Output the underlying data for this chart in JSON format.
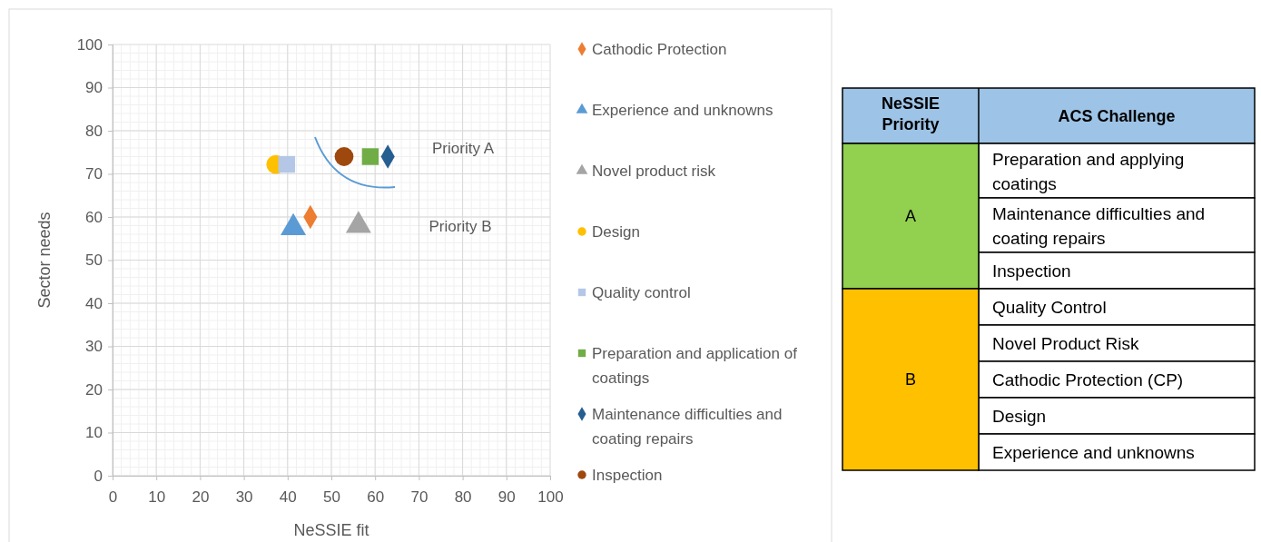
{
  "chart_data": [
    {
      "type": "scatter",
      "xlabel": "NeSSIE fit",
      "ylabel": "Sector needs",
      "xlim": [
        0,
        100
      ],
      "ylim": [
        0,
        100
      ],
      "xticks": [
        0,
        10,
        20,
        30,
        40,
        50,
        60,
        70,
        80,
        90,
        100
      ],
      "yticks": [
        0,
        10,
        20,
        30,
        40,
        50,
        60,
        70,
        80,
        90,
        100
      ],
      "grid": true,
      "legend": "right",
      "series": [
        {
          "name": "Cathodic Protection",
          "color": "#ed7d31",
          "marker": "diamond",
          "x": [
            45.2
          ],
          "values": [
            60
          ]
        },
        {
          "name": "Experience and unknowns",
          "color": "#5b9bd5",
          "marker": "triangle",
          "x": [
            41.3
          ],
          "values": [
            57.5
          ]
        },
        {
          "name": "Novel product risk",
          "color": "#a5a5a5",
          "marker": "triangle",
          "x": [
            56.2
          ],
          "values": [
            58
          ]
        },
        {
          "name": "Design",
          "color": "#ffc000",
          "marker": "circle",
          "x": [
            37.3
          ],
          "values": [
            72.2
          ]
        },
        {
          "name": "Quality control",
          "color": "#b4c7e7",
          "marker": "square",
          "x": [
            39.8
          ],
          "values": [
            72.2
          ]
        },
        {
          "name": "Preparation and application of coatings",
          "color": "#70ad47",
          "marker": "square",
          "x": [
            58.9
          ],
          "values": [
            74
          ]
        },
        {
          "name": "Maintenance difficulties and coating repairs",
          "color": "#255e91",
          "marker": "diamond",
          "x": [
            62.9
          ],
          "values": [
            74
          ]
        },
        {
          "name": "Inspection",
          "color": "#9e480e",
          "marker": "circle",
          "x": [
            52.9
          ],
          "values": [
            74
          ]
        }
      ],
      "annotations": [
        "Priority A",
        "Priority B"
      ]
    },
    {
      "type": "other",
      "categories": [
        "NeSSIE Priority",
        "ACS Challenge"
      ],
      "colors": [
        "#9dc3e6",
        "#92d050",
        "#ffc000"
      ],
      "cell_labels": [
        [
          "A",
          "Preparation and applying coatings"
        ],
        [
          null,
          "Maintenance difficulties and coating repairs"
        ],
        [
          null,
          "Inspection"
        ],
        [
          "B",
          "Quality Control"
        ],
        [
          null,
          "Novel Product Risk"
        ],
        [
          null,
          "Cathodic Protection (CP)"
        ],
        [
          null,
          "Design"
        ],
        [
          null,
          "Experience and unknowns"
        ]
      ]
    }
  ]
}
